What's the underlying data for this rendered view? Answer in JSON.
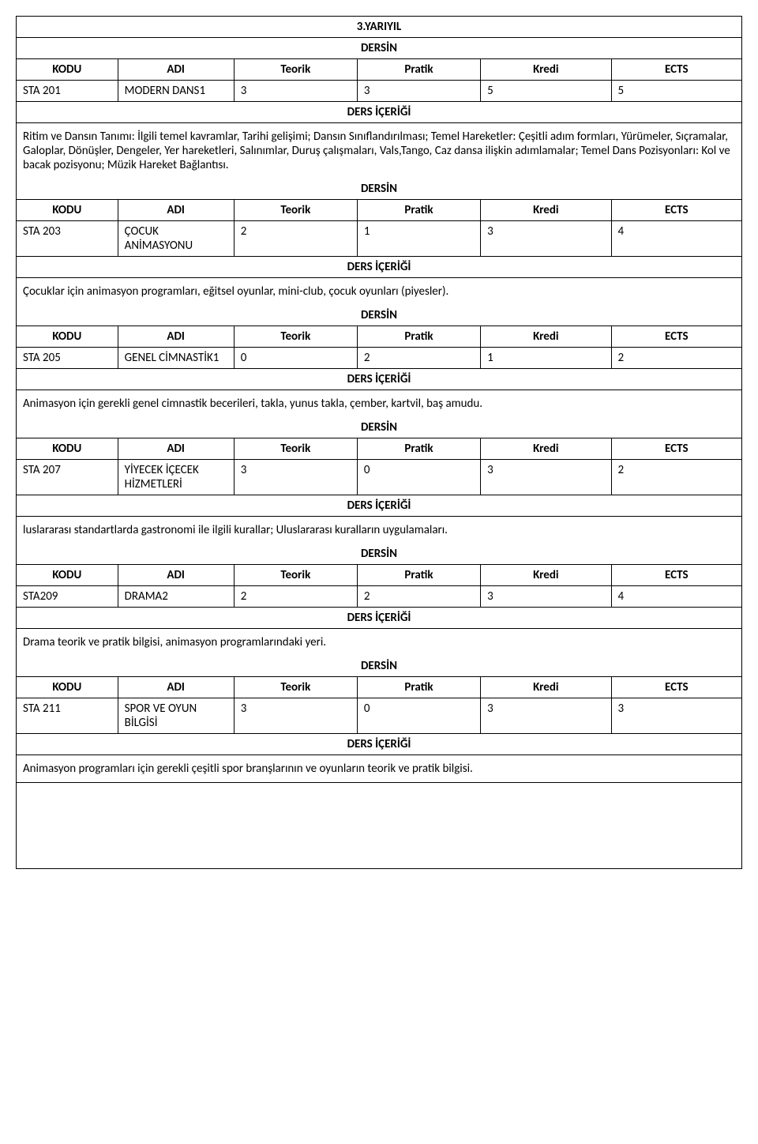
{
  "title": "3.YARIYIL",
  "dersin_label": "DERSİN",
  "icerigi_label": "DERS İÇERİĞİ",
  "headers": {
    "kodu": "KODU",
    "adi": "ADI",
    "teorik": "Teorik",
    "pratik": "Pratik",
    "kredi": "Kredi",
    "ects": "ECTS"
  },
  "courses": [
    {
      "kodu": "STA 201",
      "adi": "MODERN DANS1",
      "teorik": "3",
      "pratik": "3",
      "kredi": "5",
      "ects": "5",
      "desc": "Ritim ve Dansın Tanımı: İlgili temel kavramlar, Tarihi gelişimi; Dansın Sınıflandırılması; Temel Hareketler: Çeşitli adım formları, Yürümeler, Sıçramalar, Galoplar, Dönüşler, Dengeler, Yer hareketleri, Salınımlar, Duruş çalışmaları, Vals,Tango, Caz dansa ilişkin adımlamalar; Temel Dans Pozisyonları: Kol ve bacak pozisyonu; Müzik Hareket Bağlantısı."
    },
    {
      "kodu": "STA 203",
      "adi": "ÇOCUK ANİMASYONU",
      "teorik": "2",
      "pratik": "1",
      "kredi": "3",
      "ects": "4",
      "desc": "Çocuklar için animasyon programları, eğitsel oyunlar, mini-club, çocuk oyunları (piyesler)."
    },
    {
      "kodu": "STA 205",
      "adi": "GENEL CİMNASTİK1",
      "teorik": "0",
      "pratik": "2",
      "kredi": "1",
      "ects": "2",
      "desc": "Animasyon için gerekli genel cimnastik becerileri, takla, yunus takla, çember, kartvil, baş amudu."
    },
    {
      "kodu": "STA 207",
      "adi": "YİYECEK İÇECEK HİZMETLERİ",
      "teorik": "3",
      "pratik": "0",
      "kredi": "3",
      "ects": "2",
      "desc": "luslararası standartlarda gastronomi ile ilgili kurallar; Uluslararası kuralların uygulamaları."
    },
    {
      "kodu": "STA209",
      "adi": "DRAMA2",
      "teorik": "2",
      "pratik": "2",
      "kredi": "3",
      "ects": "4",
      "desc": "Drama teorik ve pratik bilgisi, animasyon programlarındaki yeri."
    },
    {
      "kodu": "STA 211",
      "adi": "SPOR VE OYUN BİLGİSİ",
      "teorik": "3",
      "pratik": "0",
      "kredi": "3",
      "ects": "3",
      "desc": "Animasyon programları için gerekli çeşitli spor branşlarının ve oyunların teorik ve pratik bilgisi."
    }
  ]
}
